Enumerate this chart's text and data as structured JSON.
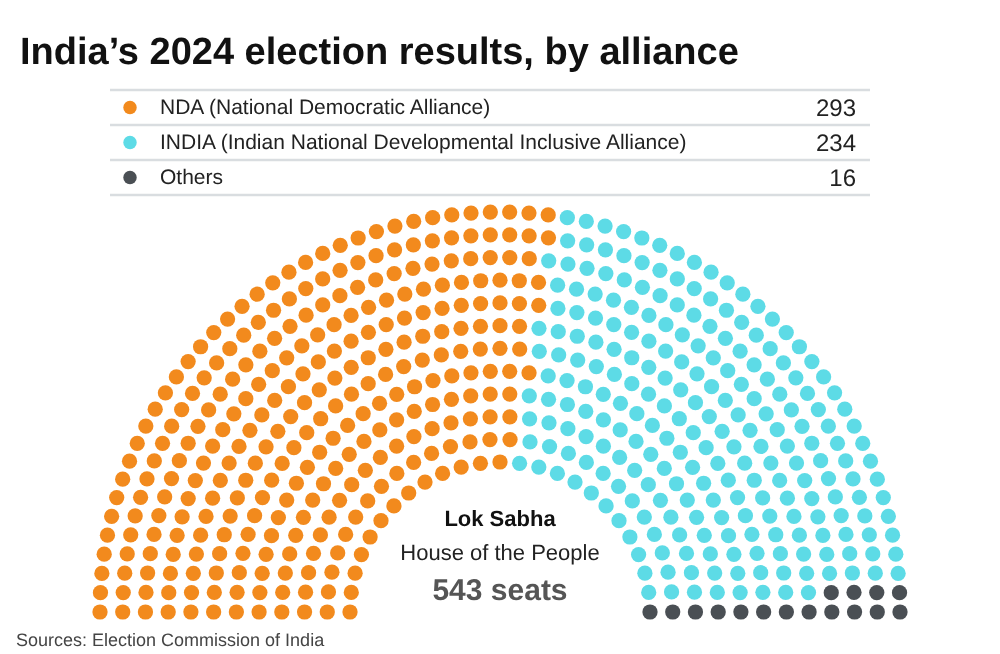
{
  "chart_data": {
    "type": "other",
    "title": "India’s 2024 election results, by alliance",
    "categories": [
      "NDA (National Democratic Alliance)",
      "INDIA (Indian National Developmental Inclusive Alliance)",
      "Others"
    ],
    "values": [
      293,
      234,
      16
    ],
    "colors": [
      "#f28a1d",
      "#5ddbe6",
      "#4a4f54"
    ],
    "data_labels": true,
    "annotations": [
      "Lok Sabha",
      "House of the People",
      "543 seats",
      "Sources: Election Commission of India"
    ]
  }
}
